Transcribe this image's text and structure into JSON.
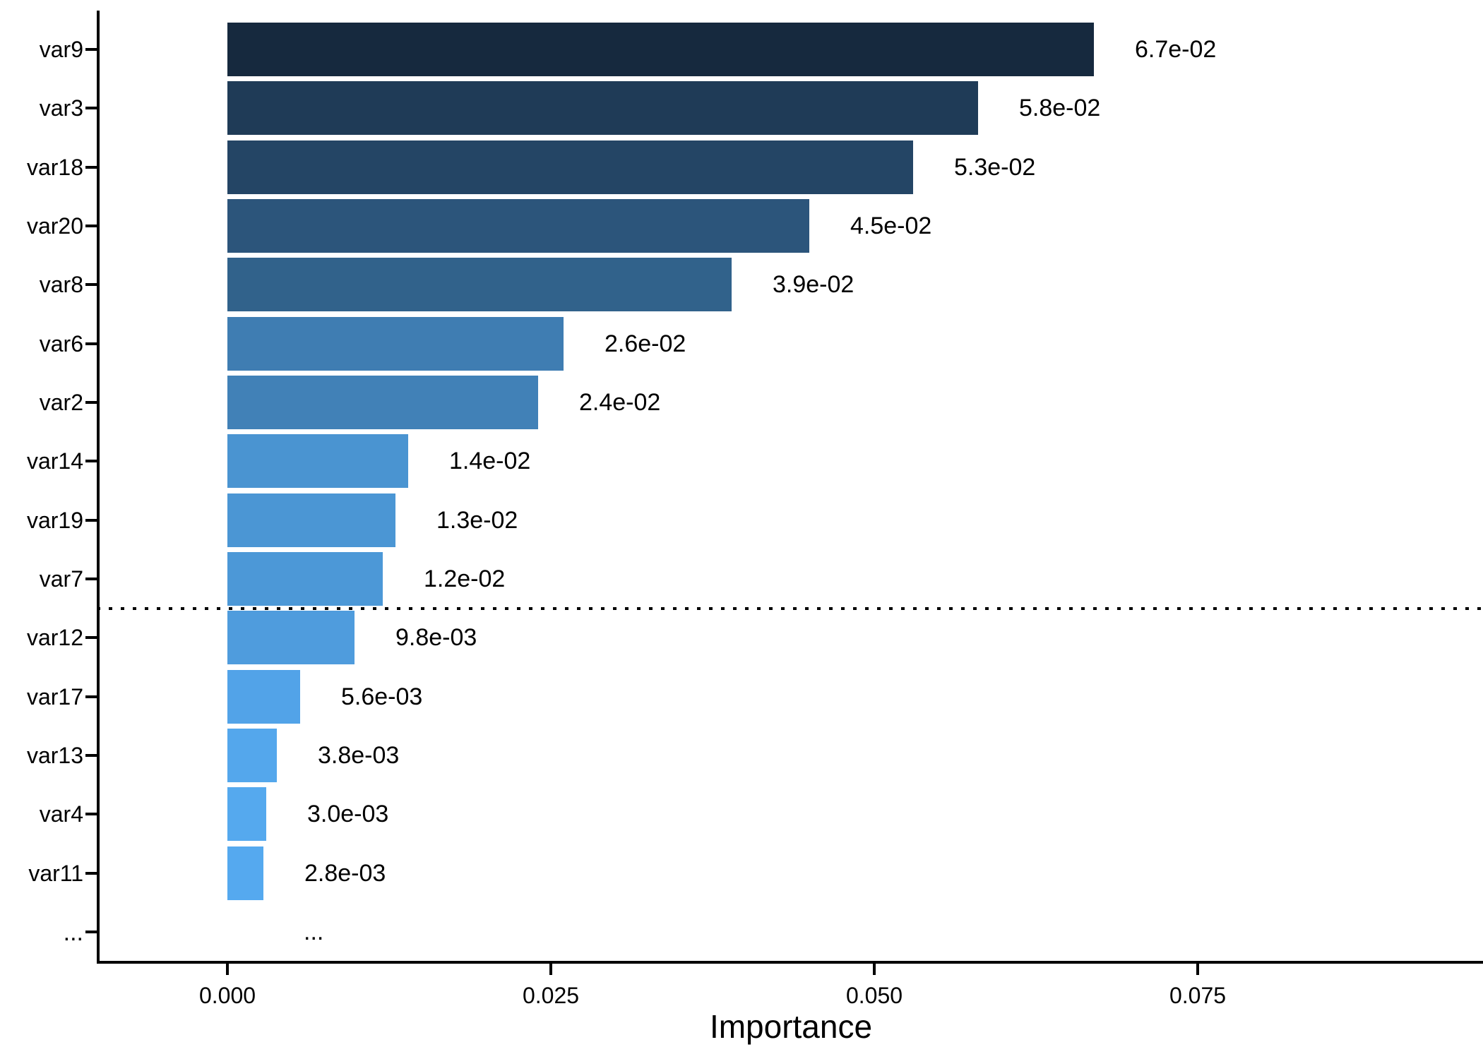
{
  "chart_data": {
    "type": "bar",
    "orientation": "horizontal",
    "title": "",
    "xlabel": "Importance",
    "ylabel": "",
    "x_tick_labels": [
      "0.000",
      "0.025",
      "0.050",
      "0.075"
    ],
    "x_tick_values": [
      0,
      0.025,
      0.05,
      0.075
    ],
    "xlim": [
      -0.01,
      0.097
    ],
    "grid": false,
    "legend": false,
    "bars": [
      {
        "category": "var9",
        "value": 0.067,
        "label": "6.7e-02",
        "color": "#16293E"
      },
      {
        "category": "var3",
        "value": 0.058,
        "label": "5.8e-02",
        "color": "#1F3B57"
      },
      {
        "category": "var18",
        "value": 0.053,
        "label": "5.3e-02",
        "color": "#244565"
      },
      {
        "category": "var20",
        "value": 0.045,
        "label": "4.5e-02",
        "color": "#2C557B"
      },
      {
        "category": "var8",
        "value": 0.039,
        "label": "3.9e-02",
        "color": "#31628B"
      },
      {
        "category": "var6",
        "value": 0.026,
        "label": "2.6e-02",
        "color": "#3F7DB2"
      },
      {
        "category": "var2",
        "value": 0.024,
        "label": "2.4e-02",
        "color": "#4181B7"
      },
      {
        "category": "var14",
        "value": 0.014,
        "label": "1.4e-02",
        "color": "#4A94D1"
      },
      {
        "category": "var19",
        "value": 0.013,
        "label": "1.3e-02",
        "color": "#4B96D4"
      },
      {
        "category": "var7",
        "value": 0.012,
        "label": "1.2e-02",
        "color": "#4C98D7"
      },
      {
        "category": "var12",
        "value": 0.0098,
        "label": "9.8e-03",
        "color": "#4F9CDD"
      },
      {
        "category": "var17",
        "value": 0.0056,
        "label": "5.6e-03",
        "color": "#52A3E8"
      },
      {
        "category": "var13",
        "value": 0.0038,
        "label": "3.8e-03",
        "color": "#54A7EC"
      },
      {
        "category": "var4",
        "value": 0.003,
        "label": "3.0e-03",
        "color": "#55A9EE"
      },
      {
        "category": "var11",
        "value": 0.0028,
        "label": "2.8e-03",
        "color": "#55A9EF"
      }
    ],
    "ellipsis_row": {
      "axis_label": "...",
      "panel_label": "..."
    },
    "cutoff_line": {
      "after_category": "var7",
      "style": "dotted",
      "color": "#000000"
    },
    "colors": {
      "gradient_high": "#16293E",
      "gradient_low": "#55A9EF",
      "axis": "#000000",
      "text": "#000000",
      "background": "#FFFFFF"
    }
  }
}
